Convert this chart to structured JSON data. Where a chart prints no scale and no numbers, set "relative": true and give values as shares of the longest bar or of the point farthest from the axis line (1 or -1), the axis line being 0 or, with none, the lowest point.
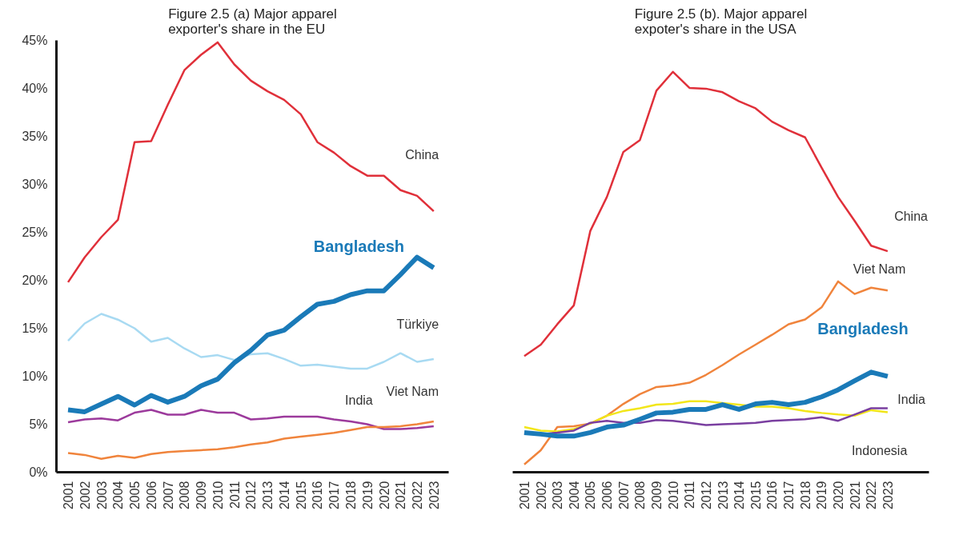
{
  "chart_data": [
    {
      "type": "line",
      "title": "Figure 2.5 (a) Major apparel exporter's share in the EU",
      "categories": [
        "2001",
        "2002",
        "2003",
        "2004",
        "2005",
        "2006",
        "2007",
        "2008",
        "2009",
        "2010",
        "2011",
        "2012",
        "2013",
        "2014",
        "2015",
        "2016",
        "2017",
        "2018",
        "2019",
        "2020",
        "2021",
        "2022",
        "2023"
      ],
      "ylim": [
        0,
        45
      ],
      "yticks": [
        {
          "value": 0,
          "label": "0%"
        },
        {
          "value": 5,
          "label": "5%"
        },
        {
          "value": 10,
          "label": "10%"
        },
        {
          "value": 15,
          "label": "15%"
        },
        {
          "value": 20,
          "label": "20%"
        },
        {
          "value": 25,
          "label": "25%"
        },
        {
          "value": 30,
          "label": "30%"
        },
        {
          "value": 35,
          "label": "35%"
        },
        {
          "value": 40,
          "label": "40%"
        },
        {
          "value": 45,
          "label": "45%"
        }
      ],
      "grid": false,
      "marker": "none",
      "line_style": "solid",
      "series": [
        {
          "name": "China",
          "color": "#e0303a",
          "values": [
            19.8,
            22.4,
            24.5,
            26.3,
            34.4,
            34.5,
            38.3,
            41.9,
            43.5,
            44.8,
            42.5,
            40.8,
            39.7,
            38.8,
            37.3,
            34.4,
            33.3,
            31.9,
            30.9,
            30.9,
            29.4,
            28.8,
            27.2
          ]
        },
        {
          "name": "Türkiye",
          "color": "#a8daf2",
          "values": [
            13.7,
            15.5,
            16.5,
            15.9,
            15.0,
            13.6,
            14.0,
            12.9,
            12.0,
            12.2,
            11.7,
            12.3,
            12.4,
            11.8,
            11.1,
            11.2,
            11.0,
            10.8,
            10.8,
            11.5,
            12.4,
            11.5,
            11.8
          ]
        },
        {
          "name": "India",
          "color": "#9c3a9c",
          "values": [
            5.2,
            5.5,
            5.6,
            5.4,
            6.2,
            6.5,
            6.0,
            6.0,
            6.5,
            6.2,
            6.2,
            5.5,
            5.6,
            5.8,
            5.8,
            5.8,
            5.5,
            5.3,
            5.0,
            4.5,
            4.5,
            4.6,
            4.8
          ]
        },
        {
          "name": "Viet Nam",
          "color": "#f0843c",
          "values": [
            2.0,
            1.8,
            1.4,
            1.7,
            1.5,
            1.9,
            2.1,
            2.2,
            2.3,
            2.4,
            2.6,
            2.9,
            3.1,
            3.5,
            3.7,
            3.9,
            4.1,
            4.4,
            4.7,
            4.7,
            4.8,
            5.0,
            5.3
          ]
        },
        {
          "name": "Bangladesh",
          "color": "#1a7ab8",
          "values": [
            6.5,
            6.3,
            7.1,
            7.9,
            7.0,
            8.0,
            7.3,
            7.9,
            9.0,
            9.7,
            11.4,
            12.7,
            14.3,
            14.8,
            16.2,
            17.5,
            17.8,
            18.5,
            18.9,
            18.9,
            20.6,
            22.4,
            21.3
          ]
        }
      ]
    },
    {
      "type": "line",
      "title": "Figure 2.5 (b). Major apparel expoter's share in the USA",
      "relative": true,
      "categories": [
        "2001",
        "2002",
        "2003",
        "2004",
        "2005",
        "2006",
        "2007",
        "2008",
        "2009",
        "2010",
        "2011",
        "2012",
        "2013",
        "2014",
        "2015",
        "2016",
        "2017",
        "2018",
        "2019",
        "2020",
        "2021",
        "2022",
        "2023"
      ],
      "grid": false,
      "marker": "none",
      "line_style": "solid",
      "series": [
        {
          "name": "China",
          "color": "#e0303a",
          "values": [
            0.276,
            0.305,
            0.357,
            0.405,
            0.595,
            0.681,
            0.796,
            0.826,
            0.952,
            1.0,
            0.959,
            0.957,
            0.948,
            0.925,
            0.907,
            0.873,
            0.851,
            0.833,
            0.756,
            0.681,
            0.62,
            0.557,
            0.543
          ]
        },
        {
          "name": "Viet Nam",
          "color": "#f0843c",
          "values": [
            0.0,
            0.036,
            0.095,
            0.097,
            0.104,
            0.124,
            0.154,
            0.179,
            0.197,
            0.201,
            0.208,
            0.228,
            0.253,
            0.28,
            0.305,
            0.33,
            0.357,
            0.369,
            0.4,
            0.466,
            0.434,
            0.45,
            0.443
          ]
        },
        {
          "name": "Indonesia",
          "color": "#f2e61a",
          "values": [
            0.095,
            0.086,
            0.084,
            0.09,
            0.104,
            0.124,
            0.136,
            0.143,
            0.152,
            0.154,
            0.161,
            0.161,
            0.156,
            0.152,
            0.147,
            0.147,
            0.143,
            0.136,
            0.131,
            0.127,
            0.124,
            0.138,
            0.133
          ]
        },
        {
          "name": "India",
          "color": "#7a3fa0",
          "values": [
            0.079,
            0.077,
            0.081,
            0.086,
            0.106,
            0.111,
            0.106,
            0.106,
            0.113,
            0.111,
            0.106,
            0.1,
            0.102,
            0.104,
            0.106,
            0.111,
            0.113,
            0.115,
            0.12,
            0.111,
            0.127,
            0.143,
            0.143
          ]
        },
        {
          "name": "Bangladesh",
          "color": "#1a7ab8",
          "values": [
            0.081,
            0.077,
            0.072,
            0.072,
            0.081,
            0.095,
            0.1,
            0.115,
            0.131,
            0.133,
            0.14,
            0.14,
            0.152,
            0.14,
            0.154,
            0.158,
            0.152,
            0.158,
            0.172,
            0.19,
            0.213,
            0.235,
            0.224
          ]
        }
      ]
    }
  ]
}
